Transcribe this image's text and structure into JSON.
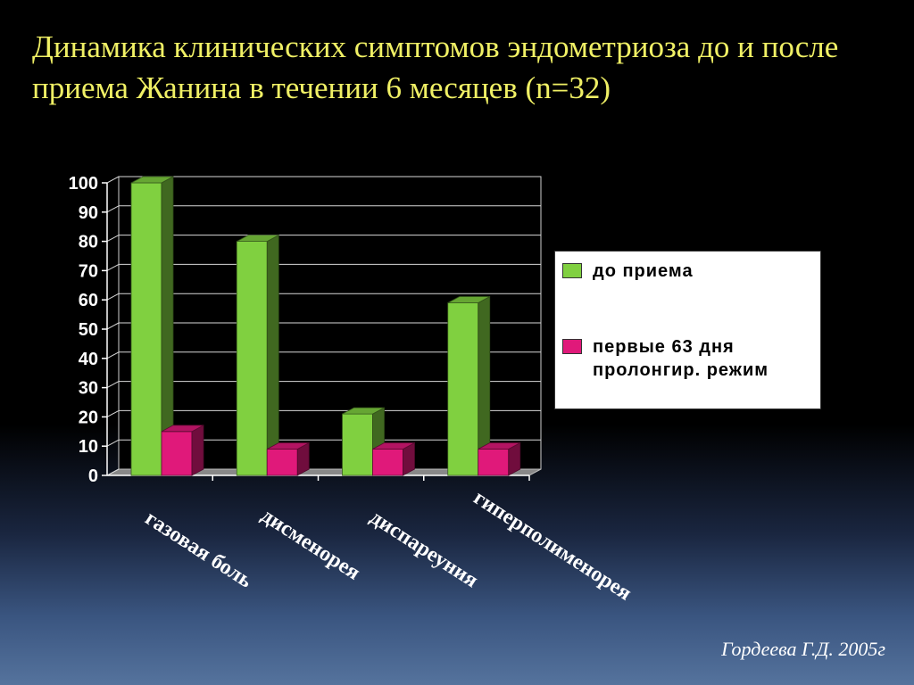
{
  "slide": {
    "title": "Динамика клинических симптомов эндометриоза до и после приема Жанина в течении 6 месяцев (n=32)",
    "credit": "Гордеева Г.Д. 2005г"
  },
  "colors": {
    "series_before": "#80d040",
    "series_after": "#e0197a",
    "title_text": "#f0f065"
  },
  "chart_data": {
    "type": "bar",
    "categories": [
      "газовая боль",
      "дисменорея",
      "диспареуния",
      "гиперполименорея"
    ],
    "series": [
      {
        "name": "до приема",
        "values": [
          100,
          80,
          21,
          59
        ]
      },
      {
        "name": "первые 63 дня пролонгир. режим",
        "values": [
          15,
          9,
          9,
          9
        ]
      }
    ],
    "ylim": [
      0,
      100
    ],
    "yticks": [
      0,
      10,
      20,
      30,
      40,
      50,
      60,
      70,
      80,
      90,
      100
    ],
    "grid": true,
    "legend_position": "right",
    "style": "3d-bars"
  }
}
